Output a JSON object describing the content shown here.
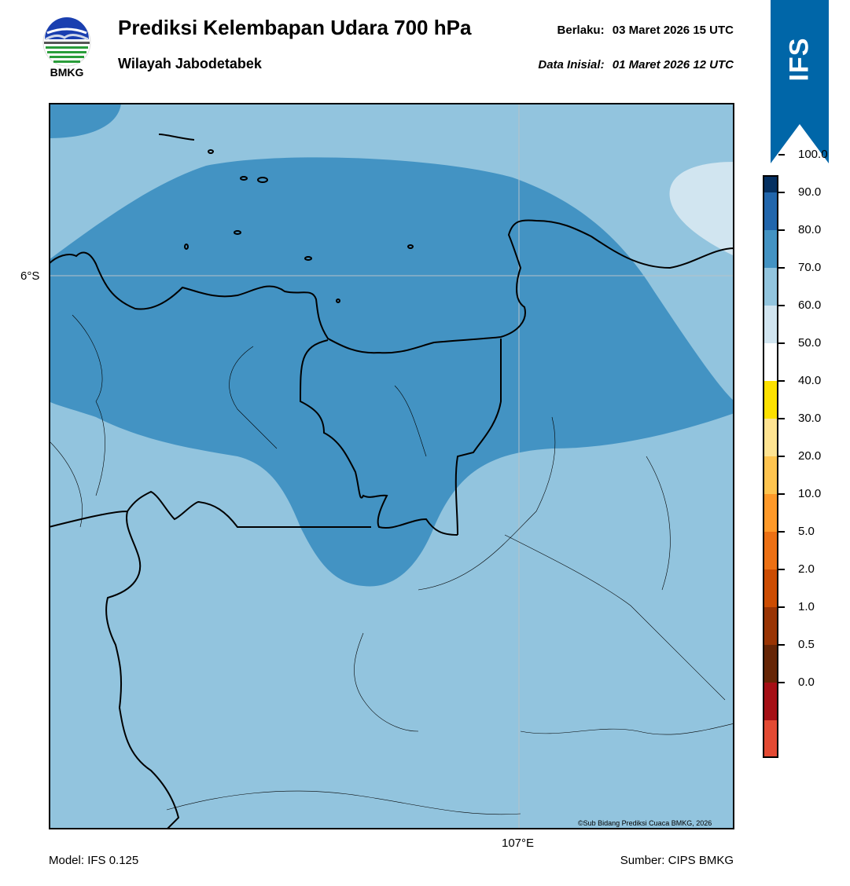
{
  "header": {
    "logo_text": "BMKG",
    "title": "Prediksi Kelembapan Udara 700 hPa",
    "subtitle": "Wilayah Jabodetabek",
    "valid_label": "Berlaku:",
    "valid_value": "03 Maret 2026 15 UTC",
    "initial_label": "Data Inisial:",
    "initial_value": "01 Maret 2026 12 UTC",
    "model_badge": "IFS"
  },
  "map": {
    "lat_label": "6°S",
    "lon_label": "107°E",
    "copyright": "©Sub Bidang Prediksi Cuaca BMKG, 2026",
    "colors": {
      "band_60_70": "#92c4de",
      "band_70_80": "#4393c3",
      "band_50_60": "#d1e5f0",
      "outline": "#000000"
    }
  },
  "colorbar": {
    "ticks": [
      "100.0",
      "90.0",
      "80.0",
      "70.0",
      "60.0",
      "50.0",
      "40.0",
      "30.0",
      "20.0",
      "10.0",
      "5.0",
      "2.0",
      "1.0",
      "0.5",
      "0.0"
    ],
    "colors": [
      "#2d004b",
      "#053061",
      "#2166ac",
      "#4393c3",
      "#92c5de",
      "#d1e5f0",
      "#ffffff",
      "#fde100",
      "#fee391",
      "#fec44f",
      "#fe9929",
      "#ec7014",
      "#cc4c02",
      "#993404",
      "#662506",
      "#a50f15",
      "#e34a33"
    ]
  },
  "footer": {
    "model": "Model: IFS 0.125",
    "source": "Sumber: CIPS BMKG"
  }
}
